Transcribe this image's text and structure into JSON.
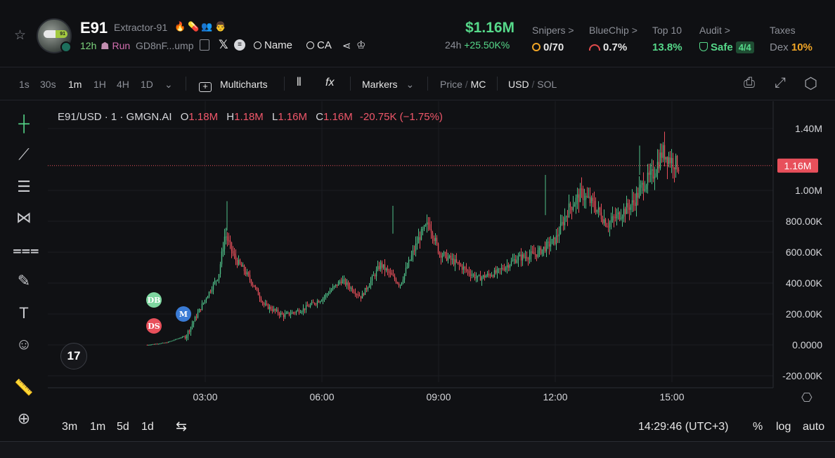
{
  "header": {
    "token_symbol": "E91",
    "token_name": "Extractor-91",
    "age": "12h",
    "run_label": "Run",
    "address": "GD8nF...ump",
    "links": {
      "name": "Name",
      "ca": "CA"
    },
    "market_cap": "$1.16M",
    "change_label": "24h",
    "change_value": "+25.50K%",
    "stats": [
      {
        "key": "Snipers >",
        "value": "0/70"
      },
      {
        "key": "BlueChip >",
        "value": "0.7%"
      },
      {
        "key": "Top 10",
        "value": "13.8%"
      },
      {
        "key": "Audit >",
        "value": "Safe",
        "badge": "4/4"
      },
      {
        "key": "Taxes",
        "value_prefix": "Dex",
        "value": "10%"
      }
    ]
  },
  "toolbar": {
    "intervals": [
      "1s",
      "30s",
      "1m",
      "1H",
      "4H",
      "1D"
    ],
    "active_interval": "1m",
    "multicharts_label": "Multicharts",
    "markers_label": "Markers",
    "price_label": "Price",
    "mc_label": "MC",
    "usd_label": "USD",
    "sol_label": "SOL"
  },
  "legend": {
    "title": "E91/USD · 1 · GMGN.AI",
    "o_label": "O",
    "o": "1.18M",
    "h_label": "H",
    "h": "1.18M",
    "l_label": "L",
    "l": "1.16M",
    "c_label": "C",
    "c": "1.16M",
    "change": "-20.75K (−1.75%)"
  },
  "chart_data": {
    "type": "candlestick",
    "x_ticks": [
      "03:00",
      "06:00",
      "09:00",
      "12:00",
      "15:00"
    ],
    "y_ticks": [
      "1.40M",
      "1.00M",
      "800.00K",
      "600.00K",
      "400.00K",
      "200.00K",
      "0.0000",
      "-200.00K"
    ],
    "y_tick_values": [
      1400000,
      1000000,
      800000,
      600000,
      400000,
      200000,
      0,
      -200000
    ],
    "ylim": [
      -200000,
      1400000
    ],
    "current_price_label": "1.16M",
    "current_price": 1160000,
    "series": [
      {
        "x": "01:30",
        "y": 0
      },
      {
        "x": "02:00",
        "y": 15000
      },
      {
        "x": "02:30",
        "y": 60000
      },
      {
        "x": "02:45",
        "y": 180000
      },
      {
        "x": "03:00",
        "y": 300000
      },
      {
        "x": "03:20",
        "y": 450000
      },
      {
        "x": "03:30",
        "y": 720000
      },
      {
        "x": "03:45",
        "y": 560000
      },
      {
        "x": "04:00",
        "y": 480000
      },
      {
        "x": "04:15",
        "y": 380000
      },
      {
        "x": "04:30",
        "y": 260000
      },
      {
        "x": "05:00",
        "y": 190000
      },
      {
        "x": "05:30",
        "y": 230000
      },
      {
        "x": "06:00",
        "y": 300000
      },
      {
        "x": "06:30",
        "y": 420000
      },
      {
        "x": "07:00",
        "y": 310000
      },
      {
        "x": "07:30",
        "y": 520000
      },
      {
        "x": "08:00",
        "y": 390000
      },
      {
        "x": "08:30",
        "y": 700000
      },
      {
        "x": "08:45",
        "y": 790000
      },
      {
        "x": "09:00",
        "y": 600000
      },
      {
        "x": "09:30",
        "y": 520000
      },
      {
        "x": "10:00",
        "y": 430000
      },
      {
        "x": "10:30",
        "y": 470000
      },
      {
        "x": "11:00",
        "y": 560000
      },
      {
        "x": "11:30",
        "y": 590000
      },
      {
        "x": "12:00",
        "y": 680000
      },
      {
        "x": "12:20",
        "y": 880000
      },
      {
        "x": "12:40",
        "y": 980000
      },
      {
        "x": "13:00",
        "y": 900000
      },
      {
        "x": "13:20",
        "y": 780000
      },
      {
        "x": "13:40",
        "y": 850000
      },
      {
        "x": "14:00",
        "y": 920000
      },
      {
        "x": "14:15",
        "y": 1040000
      },
      {
        "x": "14:30",
        "y": 1100000
      },
      {
        "x": "14:45",
        "y": 1250000
      },
      {
        "x": "15:00",
        "y": 1190000
      },
      {
        "x": "15:10",
        "y": 1160000
      }
    ],
    "markers": [
      {
        "label": "DB",
        "color": "#7ed6a0"
      },
      {
        "label": "DS",
        "color": "#e8505b"
      },
      {
        "label": "M",
        "color": "#3a7bd5"
      }
    ]
  },
  "bottom_bar": {
    "ranges": [
      "3m",
      "1m",
      "5d",
      "1d"
    ],
    "time": "14:29:46 (UTC+3)",
    "percent_label": "%",
    "log_label": "log",
    "auto_label": "auto"
  },
  "colors": {
    "up": "#4fbf88",
    "down": "#e8505b",
    "accent": "#56d98a"
  }
}
